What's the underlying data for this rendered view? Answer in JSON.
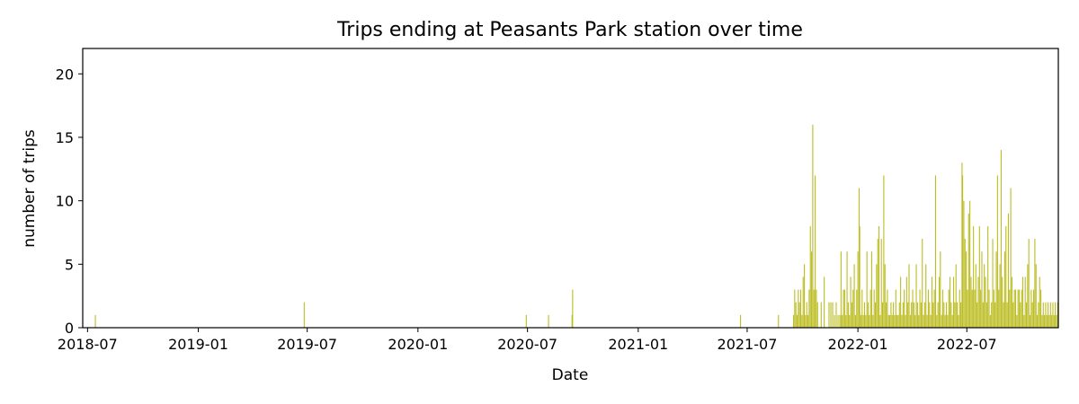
{
  "chart_data": {
    "type": "bar",
    "title": "Trips ending at Peasants Park station over time",
    "xlabel": "Date",
    "ylabel": "number of trips",
    "xlim": [
      "2018-06-23",
      "2022-11-30"
    ],
    "ylim": [
      0,
      22
    ],
    "xticks": [
      "2018-07",
      "2019-01",
      "2019-07",
      "2020-01",
      "2020-07",
      "2021-01",
      "2021-07",
      "2022-01",
      "2022-07"
    ],
    "xtick_dates": [
      "2018-07-01",
      "2019-01-01",
      "2019-07-01",
      "2020-01-01",
      "2020-07-01",
      "2021-01-01",
      "2021-07-01",
      "2022-01-01",
      "2022-07-01"
    ],
    "yticks": [
      0,
      5,
      10,
      15,
      20
    ],
    "grid": false,
    "bar_color": "#bcbd22",
    "points": [
      [
        "2018-07-14",
        1
      ],
      [
        "2019-06-26",
        2
      ],
      [
        "2020-06-29",
        1
      ],
      [
        "2020-08-05",
        1
      ],
      [
        "2020-09-13",
        1
      ],
      [
        "2020-09-14",
        3
      ],
      [
        "2021-06-20",
        1
      ],
      [
        "2021-08-22",
        1
      ],
      [
        "2021-09-16",
        1
      ],
      [
        "2021-09-18",
        3
      ],
      [
        "2021-09-20",
        2
      ],
      [
        "2021-09-22",
        1
      ],
      [
        "2021-09-24",
        3
      ],
      [
        "2021-09-26",
        2
      ],
      [
        "2021-09-28",
        3
      ],
      [
        "2021-09-30",
        1
      ],
      [
        "2021-10-02",
        4
      ],
      [
        "2021-10-04",
        5
      ],
      [
        "2021-10-06",
        1
      ],
      [
        "2021-10-08",
        2
      ],
      [
        "2021-10-10",
        1
      ],
      [
        "2021-10-12",
        3
      ],
      [
        "2021-10-14",
        8
      ],
      [
        "2021-10-16",
        6
      ],
      [
        "2021-10-18",
        16
      ],
      [
        "2021-10-20",
        3
      ],
      [
        "2021-10-22",
        12
      ],
      [
        "2021-10-24",
        3
      ],
      [
        "2021-10-26",
        2
      ],
      [
        "2021-11-01",
        2
      ],
      [
        "2021-11-06",
        4
      ],
      [
        "2021-11-14",
        2
      ],
      [
        "2021-11-17",
        2
      ],
      [
        "2021-11-20",
        2
      ],
      [
        "2021-11-23",
        1
      ],
      [
        "2021-11-26",
        2
      ],
      [
        "2021-11-29",
        1
      ],
      [
        "2021-12-02",
        1
      ],
      [
        "2021-12-04",
        6
      ],
      [
        "2021-12-06",
        1
      ],
      [
        "2021-12-08",
        3
      ],
      [
        "2021-12-10",
        3
      ],
      [
        "2021-12-12",
        1
      ],
      [
        "2021-12-14",
        6
      ],
      [
        "2021-12-16",
        2
      ],
      [
        "2021-12-18",
        1
      ],
      [
        "2021-12-20",
        4
      ],
      [
        "2021-12-22",
        2
      ],
      [
        "2021-12-24",
        3
      ],
      [
        "2021-12-26",
        5
      ],
      [
        "2021-12-28",
        1
      ],
      [
        "2021-12-30",
        3
      ],
      [
        "2022-01-01",
        6
      ],
      [
        "2022-01-03",
        11
      ],
      [
        "2022-01-04",
        8
      ],
      [
        "2022-01-06",
        1
      ],
      [
        "2022-01-08",
        3
      ],
      [
        "2022-01-10",
        1
      ],
      [
        "2022-01-12",
        2
      ],
      [
        "2022-01-14",
        1
      ],
      [
        "2022-01-16",
        6
      ],
      [
        "2022-01-18",
        2
      ],
      [
        "2022-01-20",
        1
      ],
      [
        "2022-01-22",
        3
      ],
      [
        "2022-01-24",
        6
      ],
      [
        "2022-01-26",
        1
      ],
      [
        "2022-01-28",
        3
      ],
      [
        "2022-01-30",
        2
      ],
      [
        "2022-02-01",
        5
      ],
      [
        "2022-02-03",
        7
      ],
      [
        "2022-02-05",
        8
      ],
      [
        "2022-02-07",
        1
      ],
      [
        "2022-02-09",
        7
      ],
      [
        "2022-02-11",
        2
      ],
      [
        "2022-02-13",
        12
      ],
      [
        "2022-02-15",
        5
      ],
      [
        "2022-02-17",
        2
      ],
      [
        "2022-02-19",
        3
      ],
      [
        "2022-02-21",
        1
      ],
      [
        "2022-02-23",
        1
      ],
      [
        "2022-02-25",
        2
      ],
      [
        "2022-02-27",
        1
      ],
      [
        "2022-03-01",
        2
      ],
      [
        "2022-03-03",
        1
      ],
      [
        "2022-03-05",
        3
      ],
      [
        "2022-03-07",
        1
      ],
      [
        "2022-03-09",
        1
      ],
      [
        "2022-03-11",
        2
      ],
      [
        "2022-03-13",
        4
      ],
      [
        "2022-03-15",
        1
      ],
      [
        "2022-03-17",
        2
      ],
      [
        "2022-03-19",
        3
      ],
      [
        "2022-03-21",
        1
      ],
      [
        "2022-03-23",
        4
      ],
      [
        "2022-03-25",
        2
      ],
      [
        "2022-03-27",
        5
      ],
      [
        "2022-03-29",
        1
      ],
      [
        "2022-03-31",
        2
      ],
      [
        "2022-04-02",
        3
      ],
      [
        "2022-04-04",
        2
      ],
      [
        "2022-04-06",
        1
      ],
      [
        "2022-04-08",
        5
      ],
      [
        "2022-04-10",
        2
      ],
      [
        "2022-04-12",
        1
      ],
      [
        "2022-04-14",
        3
      ],
      [
        "2022-04-16",
        2
      ],
      [
        "2022-04-18",
        7
      ],
      [
        "2022-04-20",
        1
      ],
      [
        "2022-04-22",
        2
      ],
      [
        "2022-04-24",
        5
      ],
      [
        "2022-04-26",
        1
      ],
      [
        "2022-04-28",
        3
      ],
      [
        "2022-04-30",
        2
      ],
      [
        "2022-05-02",
        1
      ],
      [
        "2022-05-04",
        4
      ],
      [
        "2022-05-06",
        2
      ],
      [
        "2022-05-08",
        3
      ],
      [
        "2022-05-10",
        12
      ],
      [
        "2022-05-12",
        1
      ],
      [
        "2022-05-14",
        2
      ],
      [
        "2022-05-16",
        4
      ],
      [
        "2022-05-18",
        6
      ],
      [
        "2022-05-20",
        1
      ],
      [
        "2022-05-22",
        3
      ],
      [
        "2022-05-24",
        2
      ],
      [
        "2022-05-26",
        1
      ],
      [
        "2022-05-28",
        2
      ],
      [
        "2022-05-30",
        1
      ],
      [
        "2022-06-01",
        3
      ],
      [
        "2022-06-03",
        4
      ],
      [
        "2022-06-05",
        2
      ],
      [
        "2022-06-07",
        1
      ],
      [
        "2022-06-09",
        4
      ],
      [
        "2022-06-11",
        2
      ],
      [
        "2022-06-13",
        5
      ],
      [
        "2022-06-15",
        2
      ],
      [
        "2022-06-17",
        1
      ],
      [
        "2022-06-19",
        3
      ],
      [
        "2022-06-21",
        2
      ],
      [
        "2022-06-23",
        13
      ],
      [
        "2022-06-24",
        12
      ],
      [
        "2022-06-26",
        10
      ],
      [
        "2022-06-28",
        7
      ],
      [
        "2022-06-30",
        6
      ],
      [
        "2022-07-02",
        3
      ],
      [
        "2022-07-04",
        9
      ],
      [
        "2022-07-06",
        10
      ],
      [
        "2022-07-08",
        4
      ],
      [
        "2022-07-10",
        3
      ],
      [
        "2022-07-12",
        8
      ],
      [
        "2022-07-14",
        3
      ],
      [
        "2022-07-16",
        5
      ],
      [
        "2022-07-18",
        2
      ],
      [
        "2022-07-20",
        4
      ],
      [
        "2022-07-22",
        8
      ],
      [
        "2022-07-24",
        3
      ],
      [
        "2022-07-26",
        6
      ],
      [
        "2022-07-28",
        2
      ],
      [
        "2022-07-30",
        5
      ],
      [
        "2022-08-01",
        4
      ],
      [
        "2022-08-03",
        2
      ],
      [
        "2022-08-05",
        8
      ],
      [
        "2022-08-07",
        3
      ],
      [
        "2022-08-09",
        1
      ],
      [
        "2022-08-11",
        2
      ],
      [
        "2022-08-13",
        7
      ],
      [
        "2022-08-15",
        3
      ],
      [
        "2022-08-17",
        2
      ],
      [
        "2022-08-19",
        6
      ],
      [
        "2022-08-21",
        12
      ],
      [
        "2022-08-23",
        3
      ],
      [
        "2022-08-25",
        5
      ],
      [
        "2022-08-27",
        14
      ],
      [
        "2022-08-29",
        4
      ],
      [
        "2022-08-31",
        2
      ],
      [
        "2022-09-02",
        6
      ],
      [
        "2022-09-04",
        8
      ],
      [
        "2022-09-06",
        2
      ],
      [
        "2022-09-08",
        9
      ],
      [
        "2022-09-10",
        3
      ],
      [
        "2022-09-12",
        11
      ],
      [
        "2022-09-14",
        4
      ],
      [
        "2022-09-16",
        2
      ],
      [
        "2022-09-18",
        3
      ],
      [
        "2022-09-20",
        3
      ],
      [
        "2022-09-22",
        1
      ],
      [
        "2022-09-24",
        3
      ],
      [
        "2022-09-26",
        3
      ],
      [
        "2022-09-28",
        2
      ],
      [
        "2022-09-30",
        3
      ],
      [
        "2022-10-02",
        4
      ],
      [
        "2022-10-04",
        1
      ],
      [
        "2022-10-06",
        4
      ],
      [
        "2022-10-08",
        2
      ],
      [
        "2022-10-10",
        5
      ],
      [
        "2022-10-12",
        7
      ],
      [
        "2022-10-14",
        1
      ],
      [
        "2022-10-16",
        3
      ],
      [
        "2022-10-18",
        2
      ],
      [
        "2022-10-20",
        3
      ],
      [
        "2022-10-22",
        7
      ],
      [
        "2022-10-24",
        5
      ],
      [
        "2022-10-26",
        1
      ],
      [
        "2022-10-28",
        2
      ],
      [
        "2022-10-30",
        4
      ],
      [
        "2022-11-01",
        3
      ],
      [
        "2022-11-03",
        1
      ],
      [
        "2022-11-05",
        2
      ],
      [
        "2022-11-07",
        1
      ],
      [
        "2022-11-09",
        2
      ],
      [
        "2022-11-11",
        1
      ],
      [
        "2022-11-13",
        2
      ],
      [
        "2022-11-15",
        1
      ],
      [
        "2022-11-17",
        2
      ],
      [
        "2022-11-19",
        1
      ],
      [
        "2022-11-21",
        2
      ],
      [
        "2022-11-23",
        1
      ],
      [
        "2022-11-25",
        2
      ],
      [
        "2022-11-27",
        1
      ],
      [
        "2022-11-29",
        2
      ]
    ]
  }
}
